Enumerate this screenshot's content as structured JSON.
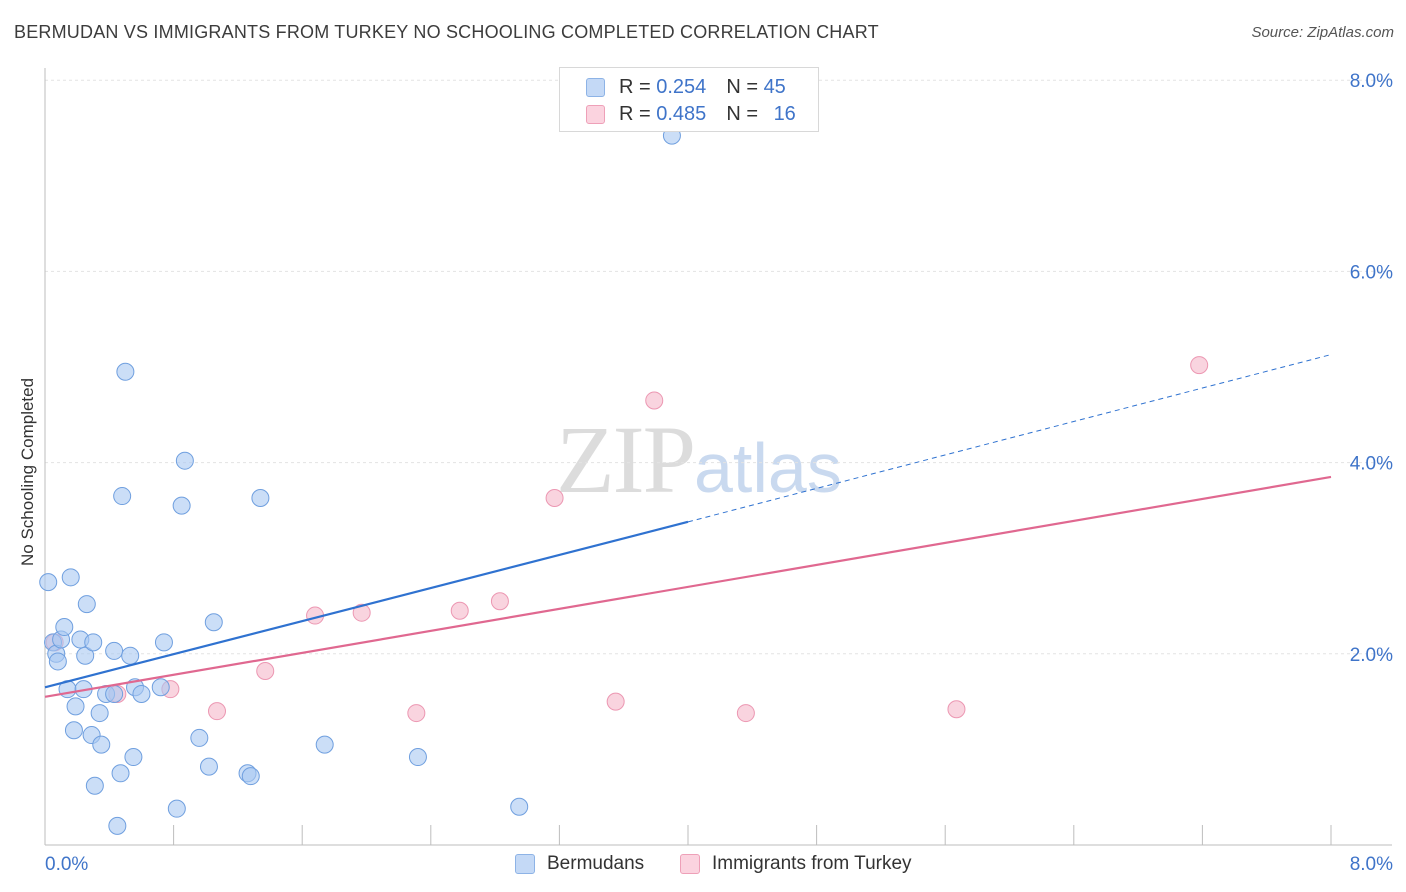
{
  "title": "BERMUDAN VS IMMIGRANTS FROM TURKEY NO SCHOOLING COMPLETED CORRELATION CHART",
  "source": "Source: ZipAtlas.com",
  "watermark": {
    "zip": "ZIP",
    "atlas": "atlas"
  },
  "legend_top": {
    "r_label": "R =",
    "n_label": "N =",
    "rows": [
      {
        "r": "0.254",
        "n": "45",
        "color": "#a9c8f2"
      },
      {
        "r": "0.485",
        "n": "16",
        "color": "#f7b9cb"
      }
    ]
  },
  "legend_bottom": {
    "items": [
      "Bermudans",
      "Immigrants from Turkey"
    ]
  },
  "colors": {
    "blue_fill": "#a9c8f2",
    "blue_stroke": "#6f9fdf",
    "blue_line": "#2f72d0",
    "pink_fill": "#f7c5d4",
    "pink_stroke": "#ec97b2",
    "pink_line": "#e06890",
    "axis_text": "#3f74c9",
    "grid": "#e3e3e3"
  },
  "chart_data": {
    "type": "scatter",
    "title": "BERMUDAN VS IMMIGRANTS FROM TURKEY NO SCHOOLING COMPLETED CORRELATION CHART",
    "xlabel": "",
    "ylabel": "No Schooling Completed",
    "xlim": [
      0,
      8
    ],
    "ylim": [
      0,
      8
    ],
    "x_tick_labels": [
      "0.0%",
      "8.0%"
    ],
    "y_tick_labels": [
      "2.0%",
      "4.0%",
      "6.0%",
      "8.0%"
    ],
    "y_ticks": [
      2,
      4,
      6,
      8
    ],
    "grid": true,
    "series": [
      {
        "name": "Bermudans",
        "r": 0.254,
        "n": 45,
        "trend": {
          "x": [
            0,
            4.0
          ],
          "y": [
            1.65,
            3.38
          ],
          "dashed_extension": {
            "x": [
              4.0,
              8.0
            ],
            "y": [
              3.38,
              5.13
            ]
          }
        },
        "points": [
          {
            "x": 0.02,
            "y": 2.75
          },
          {
            "x": 0.05,
            "y": 2.12
          },
          {
            "x": 0.07,
            "y": 2.0
          },
          {
            "x": 0.08,
            "y": 1.92
          },
          {
            "x": 0.1,
            "y": 2.15
          },
          {
            "x": 0.12,
            "y": 2.28
          },
          {
            "x": 0.14,
            "y": 1.63
          },
          {
            "x": 0.16,
            "y": 2.8
          },
          {
            "x": 0.19,
            "y": 1.45
          },
          {
            "x": 0.18,
            "y": 1.2
          },
          {
            "x": 0.22,
            "y": 2.15
          },
          {
            "x": 0.24,
            "y": 1.63
          },
          {
            "x": 0.25,
            "y": 1.98
          },
          {
            "x": 0.26,
            "y": 2.52
          },
          {
            "x": 0.29,
            "y": 1.15
          },
          {
            "x": 0.3,
            "y": 2.12
          },
          {
            "x": 0.31,
            "y": 0.62
          },
          {
            "x": 0.34,
            "y": 1.38
          },
          {
            "x": 0.35,
            "y": 1.05
          },
          {
            "x": 0.38,
            "y": 1.58
          },
          {
            "x": 0.43,
            "y": 1.58
          },
          {
            "x": 0.43,
            "y": 2.03
          },
          {
            "x": 0.45,
            "y": 0.2
          },
          {
            "x": 0.47,
            "y": 0.75
          },
          {
            "x": 0.48,
            "y": 3.65
          },
          {
            "x": 0.5,
            "y": 4.95
          },
          {
            "x": 0.53,
            "y": 1.98
          },
          {
            "x": 0.55,
            "y": 0.92
          },
          {
            "x": 0.56,
            "y": 1.65
          },
          {
            "x": 0.6,
            "y": 1.58
          },
          {
            "x": 0.72,
            "y": 1.65
          },
          {
            "x": 0.74,
            "y": 2.12
          },
          {
            "x": 0.82,
            "y": 0.38
          },
          {
            "x": 0.85,
            "y": 3.55
          },
          {
            "x": 0.87,
            "y": 4.02
          },
          {
            "x": 0.96,
            "y": 1.12
          },
          {
            "x": 1.02,
            "y": 0.82
          },
          {
            "x": 1.05,
            "y": 2.33
          },
          {
            "x": 1.26,
            "y": 0.75
          },
          {
            "x": 1.28,
            "y": 0.72
          },
          {
            "x": 1.34,
            "y": 3.63
          },
          {
            "x": 1.74,
            "y": 1.05
          },
          {
            "x": 2.32,
            "y": 0.92
          },
          {
            "x": 2.95,
            "y": 0.4
          },
          {
            "x": 3.9,
            "y": 7.42
          }
        ]
      },
      {
        "name": "Immigrants from Turkey",
        "r": 0.485,
        "n": 16,
        "trend": {
          "x": [
            0,
            8.0
          ],
          "y": [
            1.55,
            3.85
          ]
        },
        "points": [
          {
            "x": 0.06,
            "y": 2.12
          },
          {
            "x": 0.45,
            "y": 1.58
          },
          {
            "x": 0.78,
            "y": 1.63
          },
          {
            "x": 1.07,
            "y": 1.4
          },
          {
            "x": 1.37,
            "y": 1.82
          },
          {
            "x": 1.68,
            "y": 2.4
          },
          {
            "x": 1.97,
            "y": 2.43
          },
          {
            "x": 2.31,
            "y": 1.38
          },
          {
            "x": 2.58,
            "y": 2.45
          },
          {
            "x": 2.83,
            "y": 2.55
          },
          {
            "x": 3.17,
            "y": 3.63
          },
          {
            "x": 3.55,
            "y": 1.5
          },
          {
            "x": 3.79,
            "y": 4.65
          },
          {
            "x": 4.36,
            "y": 1.38
          },
          {
            "x": 5.67,
            "y": 1.42
          },
          {
            "x": 7.18,
            "y": 5.02
          }
        ]
      }
    ]
  }
}
